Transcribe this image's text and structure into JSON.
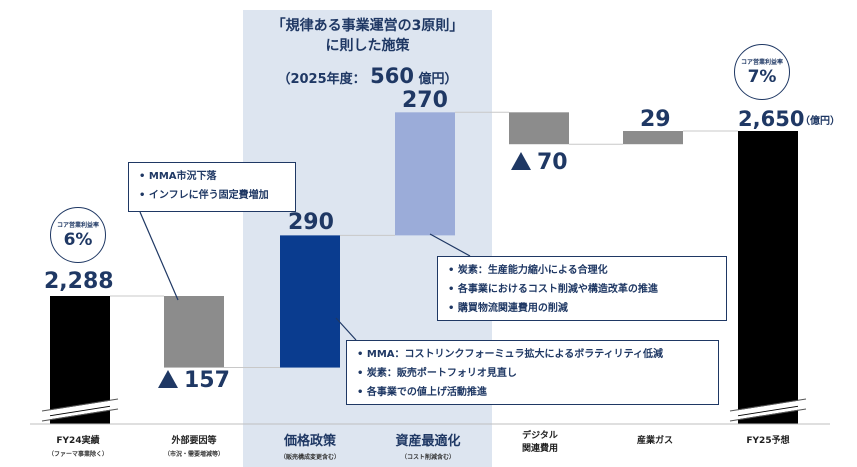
{
  "headline": {
    "line1": "「規律ある事業運営の3原則」",
    "line2": "に則した施策",
    "line3_prefix": "（2025年度：",
    "line3_value": "560",
    "line3_unit": "億円）"
  },
  "unit_label": "（億円）",
  "badges": [
    {
      "title": "コア営業利益率",
      "value": "6%"
    },
    {
      "title": "コア営業利益率",
      "value": "7%"
    }
  ],
  "value_labels": {
    "fy24": "2,288",
    "external": "157",
    "price": "290",
    "asset": "270",
    "digital": "70",
    "gas": "29",
    "fy25": "2,650"
  },
  "callouts": {
    "external": [
      "MMA市況下落",
      "インフレに伴う固定費増加"
    ],
    "asset": [
      "炭素：生産能力縮小による合理化",
      "各事業におけるコスト削減や構造改革の推進",
      "購買物流関連費用の削減"
    ],
    "price": [
      "MMA：コストリンクフォーミュラ拡大によるボラティリティ低減",
      "炭素：販売ポートフォリオ見直し",
      "各事業での値上げ活動推進"
    ]
  },
  "categories": [
    {
      "label": "FY24実績",
      "sub": "（ファーマ事業除く）"
    },
    {
      "label": "外部要因等",
      "sub": "（市況・需要増減等）"
    },
    {
      "label": "価格政策",
      "sub": "（販売構成変更含む）"
    },
    {
      "label": "資産最適化",
      "sub": "（コスト削減含む）"
    },
    {
      "label": "デジタル",
      "label2": "関連費用",
      "sub": ""
    },
    {
      "label": "産業ガス",
      "sub": ""
    },
    {
      "label": "FY25予想",
      "sub": ""
    }
  ],
  "chart_data": {
    "type": "bar",
    "subtype": "waterfall",
    "categories": [
      "FY24実績",
      "外部要因等",
      "価格政策",
      "資産最適化",
      "デジタル関連費用",
      "産業ガス",
      "FY25予想"
    ],
    "values": [
      2288,
      -157,
      290,
      270,
      -70,
      29,
      2650
    ],
    "kinds": [
      "total",
      "decrease",
      "increase",
      "increase",
      "decrease",
      "increase",
      "total"
    ],
    "unit": "億円",
    "colors": {
      "total": "#000000",
      "decrease": "#8c8c8c",
      "price": "#0a3c8f",
      "asset": "#9bacd9",
      "gas": "#8c8c8c",
      "highlight_band": "#dde5f0",
      "text": "#1f3864"
    }
  }
}
